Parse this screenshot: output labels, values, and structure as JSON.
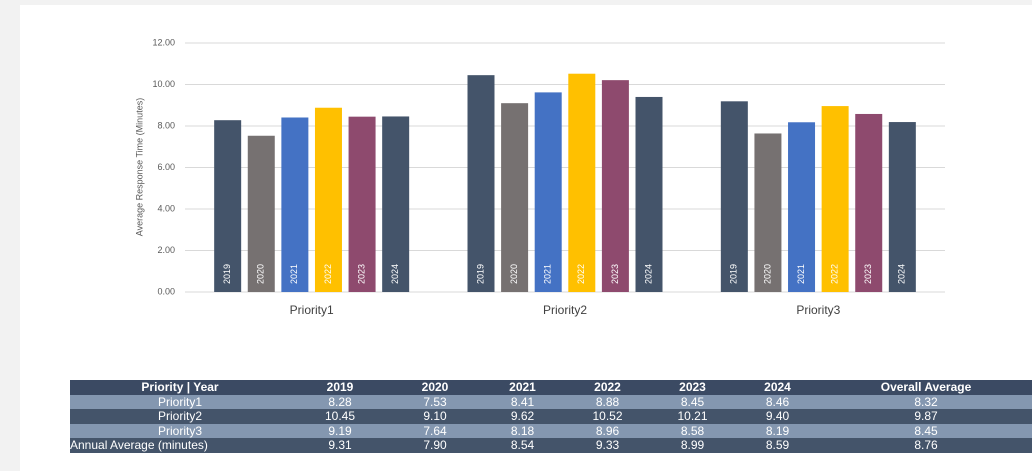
{
  "chart_data": {
    "type": "bar",
    "y_label": "Average Response Time (Minutes)",
    "categories": [
      "Priority1",
      "Priority2",
      "Priority3"
    ],
    "series": [
      {
        "name": "2019",
        "color": "#44546a",
        "values": [
          8.28,
          10.45,
          9.19
        ]
      },
      {
        "name": "2020",
        "color": "#767171",
        "values": [
          7.53,
          9.1,
          7.64
        ]
      },
      {
        "name": "2021",
        "color": "#4472c4",
        "values": [
          8.41,
          9.62,
          8.18
        ]
      },
      {
        "name": "2022",
        "color": "#ffc000",
        "values": [
          8.88,
          10.52,
          8.96
        ]
      },
      {
        "name": "2023",
        "color": "#8e4a6e",
        "values": [
          8.45,
          10.21,
          8.58
        ]
      },
      {
        "name": "2024",
        "color": "#44546a",
        "values": [
          8.46,
          9.4,
          8.19
        ]
      }
    ],
    "ylim": [
      0,
      12
    ],
    "yticks": [
      {
        "value": 0,
        "label": "0.00"
      },
      {
        "value": 2,
        "label": "2.00"
      },
      {
        "value": 4,
        "label": "4.00"
      },
      {
        "value": 6,
        "label": "6.00"
      },
      {
        "value": 8,
        "label": "8.00"
      },
      {
        "value": 10,
        "label": "10.00"
      },
      {
        "value": 12,
        "label": "12.00"
      }
    ],
    "grid": true
  },
  "table": {
    "header": [
      "Priority | Year",
      "2019",
      "2020",
      "2021",
      "2022",
      "2023",
      "2024",
      "Overall Average"
    ],
    "rows": [
      [
        "Priority1",
        "8.28",
        "7.53",
        "8.41",
        "8.88",
        "8.45",
        "8.46",
        "8.32"
      ],
      [
        "Priority2",
        "10.45",
        "9.10",
        "9.62",
        "10.52",
        "10.21",
        "9.40",
        "9.87"
      ],
      [
        "Priority3",
        "9.19",
        "7.64",
        "8.18",
        "8.96",
        "8.58",
        "8.19",
        "8.45"
      ],
      [
        "Annual Average (minutes)",
        "9.31",
        "7.90",
        "8.54",
        "9.33",
        "8.99",
        "8.59",
        "8.76"
      ]
    ]
  }
}
